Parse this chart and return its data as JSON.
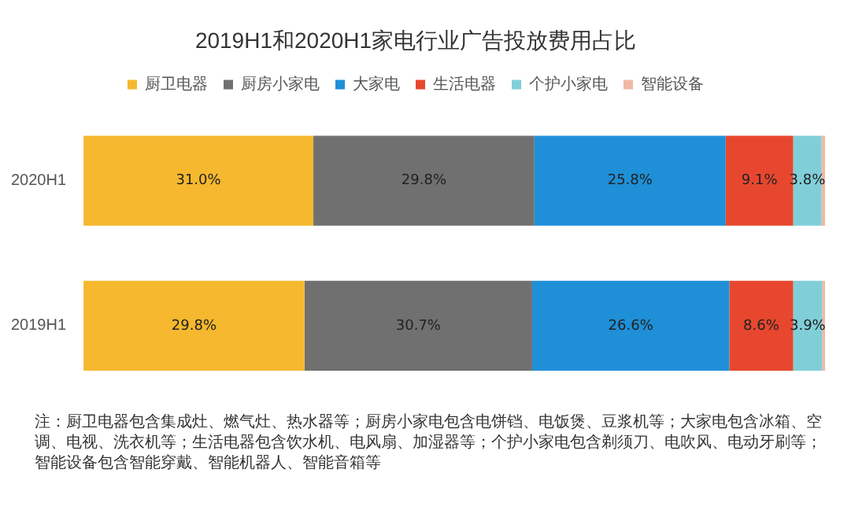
{
  "chart_data": {
    "type": "bar",
    "orientation": "horizontal",
    "stacked": true,
    "title": "2019H1和2020H1家电行业广告投放费用占比",
    "categories": [
      "2020H1",
      "2019H1"
    ],
    "series": [
      {
        "name": "厨卫电器",
        "color": "#f5b82e",
        "values": [
          31.0,
          29.8
        ],
        "value_labels": [
          "31.0%",
          "29.8%"
        ]
      },
      {
        "name": "厨房小家电",
        "color": "#707070",
        "values": [
          29.8,
          30.7
        ],
        "value_labels": [
          "29.8%",
          "30.7%"
        ]
      },
      {
        "name": "大家电",
        "color": "#1f8fd8",
        "values": [
          25.8,
          26.6
        ],
        "value_labels": [
          "25.8%",
          "26.6%"
        ]
      },
      {
        "name": "生活电器",
        "color": "#e8472f",
        "values": [
          9.1,
          8.6
        ],
        "value_labels": [
          "9.1%",
          "8.6%"
        ]
      },
      {
        "name": "个护小家电",
        "color": "#80cfd8",
        "values": [
          3.8,
          3.9
        ],
        "value_labels": [
          "3.8%",
          "3.9%"
        ]
      },
      {
        "name": "智能设备",
        "color": "#f0b8a6",
        "values": [
          0.5,
          0.4
        ],
        "value_labels": [
          null,
          null
        ]
      }
    ],
    "xlim": [
      0,
      100
    ],
    "tick_labels": "y",
    "legend": "top",
    "annotations": [
      "注：厨卫电器包含集成灶、燃气灶、热水器等；厨房小家电包含电饼铛、电饭煲、豆浆机等；大家电包含冰箱、空调、电视、洗衣机等；生活电器包含饮水机、电风扇、加湿器等；个护小家电包含剃须刀、电吹风、电动牙刷等；智能设备包含智能穿戴、智能机器人、智能音箱等"
    ]
  }
}
